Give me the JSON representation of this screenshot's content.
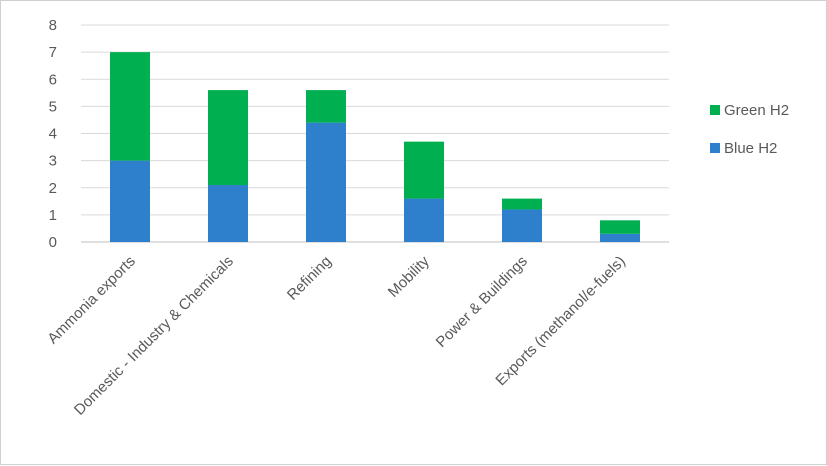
{
  "chart_data": {
    "type": "bar",
    "stacked": true,
    "title": "",
    "xlabel": "",
    "ylabel": "",
    "ylim": [
      0,
      8
    ],
    "yticks": [
      "0",
      "1",
      "2",
      "3",
      "4",
      "5",
      "6",
      "7",
      "8"
    ],
    "grid": true,
    "legend_position": "right",
    "categories": [
      "Ammonia exports",
      "Domestic - Industry & Chemicals",
      "Refining",
      "Mobility",
      "Power & Buildings",
      "Exports (methanol/e-fuels)"
    ],
    "series": [
      {
        "name": "Blue H2",
        "color": "#2E7FCC",
        "values": [
          3.0,
          2.1,
          4.4,
          1.6,
          1.2,
          0.3
        ]
      },
      {
        "name": "Green H2",
        "color": "#00B050",
        "values": [
          4.0,
          3.5,
          1.2,
          2.1,
          0.4,
          0.5
        ]
      }
    ],
    "legend_order": [
      "Green H2",
      "Blue H2"
    ]
  }
}
